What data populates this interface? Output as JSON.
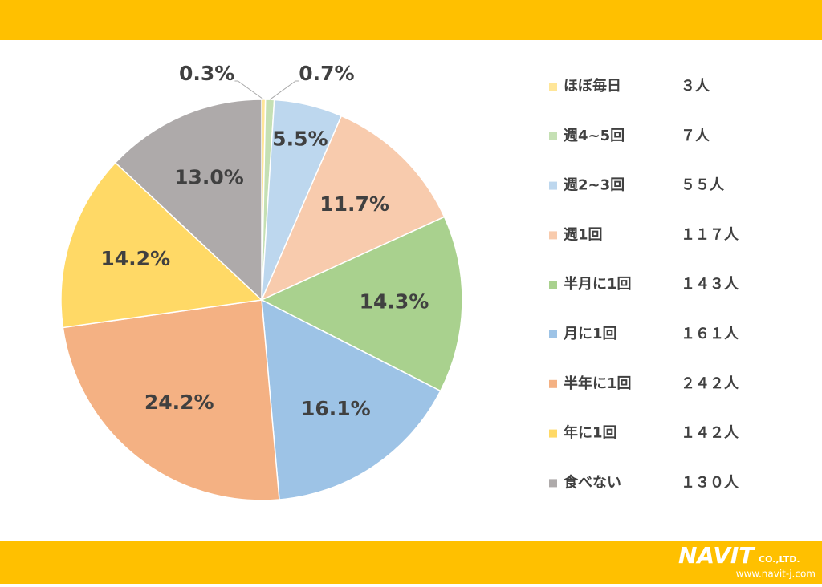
{
  "chart_data": {
    "type": "pie",
    "categories": [
      "ほぼ毎日",
      "週4~5回",
      "週2~3回",
      "週1回",
      "半月に1回",
      "月に1回",
      "半年に1回",
      "年に1回",
      "食べない"
    ],
    "values": [
      0.3,
      0.7,
      5.5,
      11.7,
      14.3,
      16.1,
      24.2,
      14.2,
      13.0
    ],
    "value_labels": [
      "0.3%",
      "0.7%",
      "5.5%",
      "11.7%",
      "14.3%",
      "16.1%",
      "24.2%",
      "14.2%",
      "13.0%"
    ],
    "counts": [
      3,
      7,
      55,
      117,
      143,
      161,
      242,
      142,
      130
    ],
    "count_labels": [
      "３人",
      "７人",
      "５５人",
      "１１７人",
      "１４３人",
      "１６１人",
      "２４２人",
      "１４２人",
      "１３０人"
    ],
    "colors": [
      "#FFE699",
      "#C5E0B4",
      "#BDD7EE",
      "#F8CBAD",
      "#A9D18E",
      "#9DC3E6",
      "#F4B183",
      "#FFD966",
      "#AEAAAA"
    ],
    "legend": "right"
  },
  "footer": {
    "logo": "NAVIT",
    "company": "CO.,LTD.",
    "url": "www.navit-j.com"
  }
}
